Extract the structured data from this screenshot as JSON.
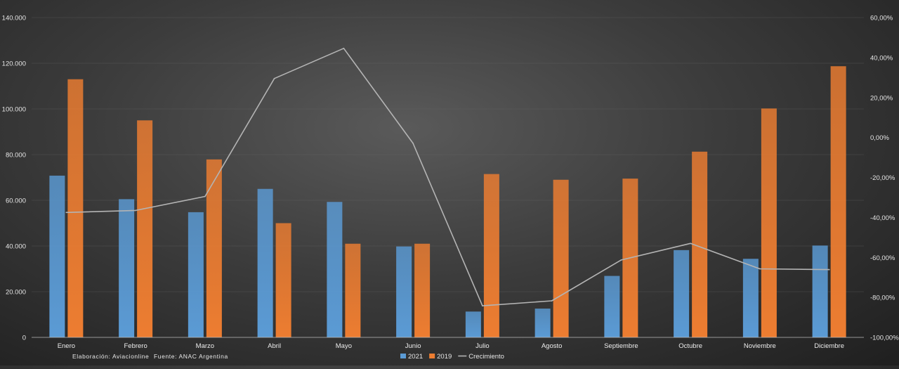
{
  "chart_data": {
    "type": "bar",
    "categories": [
      "Enero",
      "Febrero",
      "Marzo",
      "Abril",
      "Mayo",
      "Junio",
      "Julio",
      "Agosto",
      "Septiembre",
      "Octubre",
      "Noviembre",
      "Diciembre"
    ],
    "series": [
      {
        "name": "2021",
        "kind": "bar",
        "axis": "left",
        "color": "#5b9bd5",
        "values": [
          70800,
          60500,
          54800,
          65000,
          59300,
          39800,
          11300,
          12600,
          26900,
          38200,
          34400,
          40200
        ]
      },
      {
        "name": "2019",
        "kind": "bar",
        "axis": "left",
        "color": "#ed7d31",
        "values": [
          113000,
          95000,
          77900,
          50000,
          41000,
          41000,
          71500,
          69000,
          69500,
          81300,
          100200,
          118700
        ]
      },
      {
        "name": "Crecimiento",
        "kind": "line",
        "axis": "right",
        "color": "#b4b4b4",
        "values": [
          -37.5,
          -36.5,
          -29.5,
          29.5,
          44.6,
          -2.9,
          -84.2,
          -81.7,
          -61.3,
          -53.0,
          -65.7,
          -66.1
        ]
      }
    ],
    "y_left": {
      "min": 0,
      "max": 140000,
      "ticks": [
        0,
        20000,
        40000,
        60000,
        80000,
        100000,
        120000,
        140000
      ],
      "tick_labels": [
        "0",
        "20.000",
        "40.000",
        "60.000",
        "80.000",
        "100.000",
        "120.000",
        "140.000"
      ]
    },
    "y_right": {
      "min": -100,
      "max": 60,
      "ticks": [
        -100,
        -80,
        -60,
        -40,
        -20,
        0,
        20,
        40,
        60
      ],
      "tick_labels": [
        "-100,00%",
        "-80,00%",
        "-60,00%",
        "-40,00%",
        "-20,00%",
        "0,00%",
        "20,00%",
        "40,00%",
        "60,00%"
      ]
    },
    "grid": true,
    "legend_position": "bottom-center",
    "annotations": {
      "elaboracion": "Elaboración: Aviacionline",
      "fuente": "Fuente: ANAC Argentina"
    }
  }
}
